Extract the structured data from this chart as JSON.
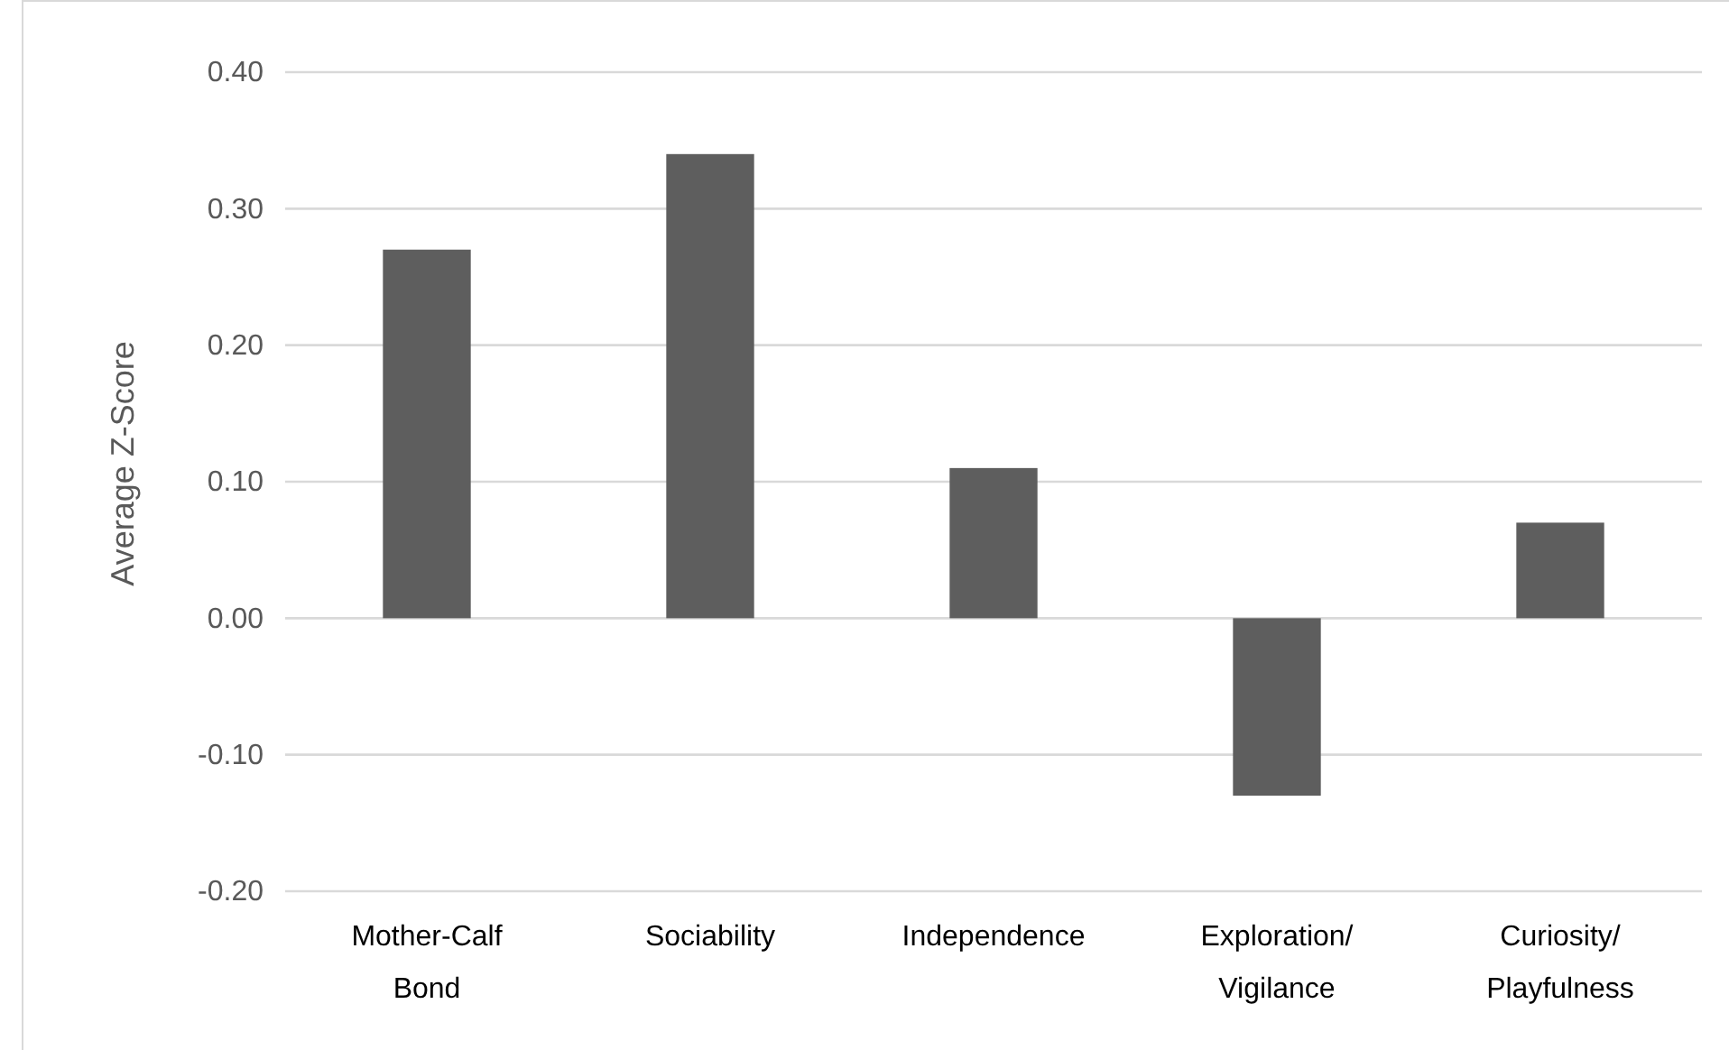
{
  "chart_data": {
    "type": "bar",
    "ylabel": "Average Z-Score",
    "categories": [
      "Mother-Calf Bond",
      "Sociability",
      "Independence",
      "Exploration/Vigilance",
      "Curiosity/Playfulness"
    ],
    "values": [
      0.27,
      0.34,
      0.11,
      -0.13,
      0.07
    ],
    "color": "#5e5e5e",
    "ylim": [
      -0.2,
      0.4
    ],
    "yticks": [
      {
        "value": -0.2,
        "label": "-0.20"
      },
      {
        "value": -0.1,
        "label": "-0.10"
      },
      {
        "value": 0,
        "label": "0.00"
      },
      {
        "value": 0.1,
        "label": "0.10"
      },
      {
        "value": 0.2,
        "label": "0.20"
      },
      {
        "value": 0.3,
        "label": "0.30"
      },
      {
        "value": 0.4,
        "label": "0.40"
      }
    ],
    "grid": "y"
  }
}
